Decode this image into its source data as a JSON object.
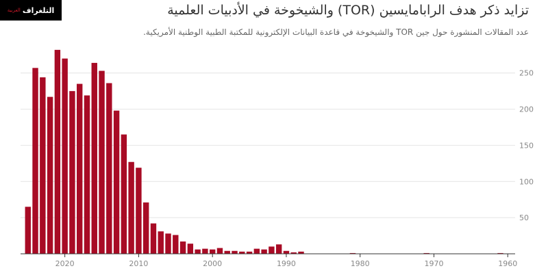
{
  "logo": {
    "main": "التلغراف",
    "sub": "العربية"
  },
  "chart_data": {
    "type": "bar",
    "title": "تزايد ذكر هدف الرابامايسين (TOR) والشيخوخة في الأدبيات العلمية",
    "subtitle": "عدد المقالات المنشورة حول جين TOR والشيخوخة في قاعدة البيانات الإلكترونية للمكتبة الطبية الوطنية الأمريكية.",
    "xlabel": "",
    "ylabel": "",
    "x_reversed": true,
    "xlim": [
      1959,
      2026
    ],
    "ylim": [
      0,
      280
    ],
    "grid": true,
    "x_ticks": [
      2020,
      2010,
      2000,
      1990,
      1980,
      1970,
      1960
    ],
    "y_ticks": [
      50,
      100,
      150,
      200,
      250
    ],
    "bar_color": "#a80b25",
    "categories": [
      2025,
      2024,
      2023,
      2022,
      2021,
      2020,
      2019,
      2018,
      2017,
      2016,
      2015,
      2014,
      2013,
      2012,
      2011,
      2010,
      2009,
      2008,
      2007,
      2006,
      2005,
      2004,
      2003,
      2002,
      2001,
      2000,
      1999,
      1998,
      1997,
      1996,
      1995,
      1994,
      1993,
      1992,
      1991,
      1990,
      1989,
      1988,
      1981,
      1971,
      1961
    ],
    "values": [
      65,
      257,
      244,
      217,
      282,
      270,
      225,
      235,
      219,
      264,
      253,
      236,
      198,
      165,
      127,
      119,
      71,
      42,
      31,
      28,
      26,
      17,
      14,
      6,
      7,
      6,
      8,
      4,
      4,
      3,
      3,
      7,
      6,
      10,
      13,
      4,
      2,
      3,
      1,
      1,
      1
    ]
  }
}
